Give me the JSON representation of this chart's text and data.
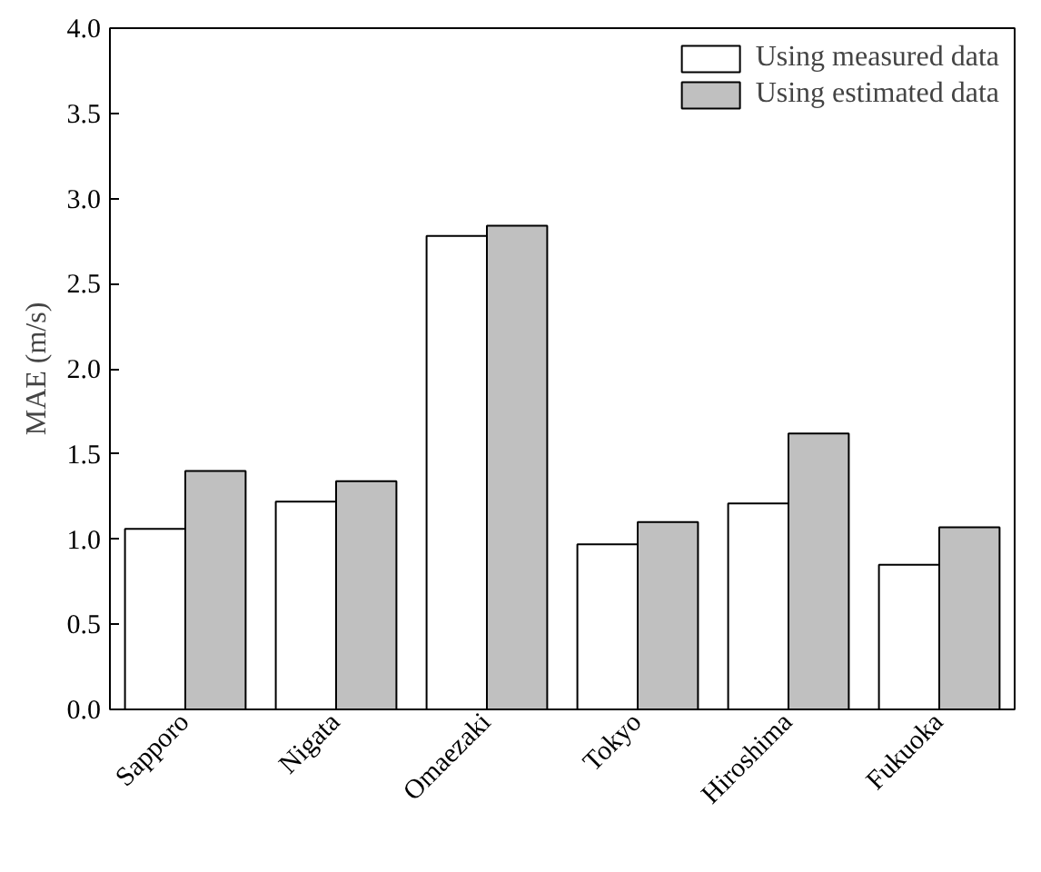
{
  "chart_data": {
    "type": "bar",
    "ylabel": "MAE (m/s)",
    "categories": [
      "Sapporo",
      "Nigata",
      "Omaezaki",
      "Tokyo",
      "Hiroshima",
      "Fukuoka"
    ],
    "series": [
      {
        "name": "Using measured data",
        "color": "#ffffff",
        "values": [
          1.06,
          1.22,
          2.78,
          0.97,
          1.21,
          0.85
        ]
      },
      {
        "name": "Using estimated data",
        "color": "#c0c0c0",
        "values": [
          1.4,
          1.34,
          2.84,
          1.1,
          1.62,
          1.07
        ]
      }
    ],
    "ylim": [
      0,
      4
    ],
    "yticks": [
      {
        "value": 0,
        "label": "0.0"
      },
      {
        "value": 0.5,
        "label": "0.5"
      },
      {
        "value": 1,
        "label": "1.0"
      },
      {
        "value": 1.5,
        "label": "1.5"
      },
      {
        "value": 2,
        "label": "2.0"
      },
      {
        "value": 2.5,
        "label": "2.5"
      },
      {
        "value": 3,
        "label": "3.0"
      },
      {
        "value": 3.5,
        "label": "3.5"
      },
      {
        "value": 4,
        "label": "4.0"
      }
    ],
    "legend": "top right",
    "grid": false
  }
}
